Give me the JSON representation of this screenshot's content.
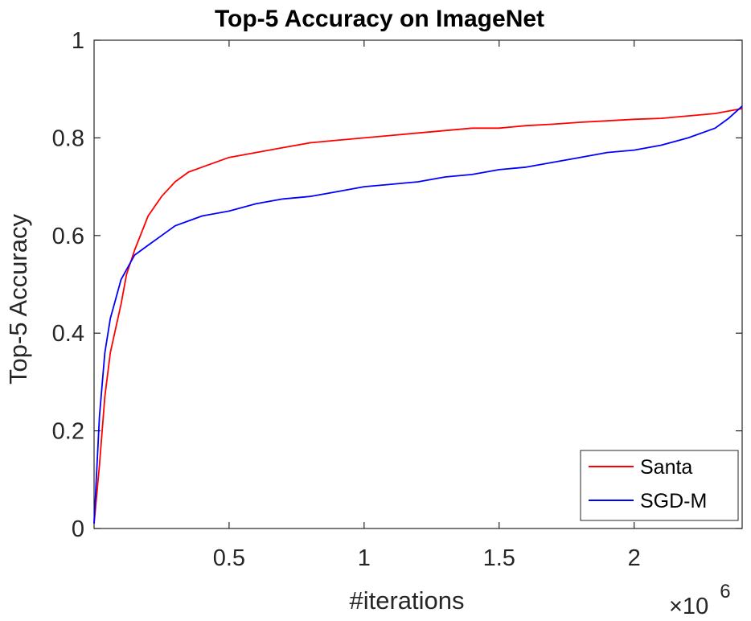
{
  "chart_data": {
    "type": "line",
    "title": "Top-5 Accuracy on ImageNet",
    "xlabel": "#iterations",
    "ylabel": "Top-5 Accuracy",
    "x_multiplier_prefix": "×10",
    "x_multiplier_exp": "6",
    "xlim": [
      0,
      2.4
    ],
    "ylim": [
      0,
      1
    ],
    "xticks": [
      0.5,
      1,
      1.5,
      2
    ],
    "xtick_labels": [
      "0.5",
      "1",
      "1.5",
      "2"
    ],
    "yticks": [
      0,
      0.2,
      0.4,
      0.6,
      0.8,
      1
    ],
    "ytick_labels": [
      "0",
      "0.2",
      "0.4",
      "0.6",
      "0.8",
      "1"
    ],
    "grid": false,
    "legend_position": "bottom-right",
    "x": [
      0,
      0.02,
      0.04,
      0.06,
      0.08,
      0.1,
      0.12,
      0.15,
      0.2,
      0.25,
      0.3,
      0.35,
      0.4,
      0.5,
      0.6,
      0.7,
      0.8,
      0.9,
      1.0,
      1.1,
      1.2,
      1.3,
      1.4,
      1.5,
      1.6,
      1.7,
      1.8,
      1.9,
      2.0,
      2.1,
      2.2,
      2.3,
      2.35,
      2.4
    ],
    "series": [
      {
        "name": "Santa",
        "color": "#ff0000",
        "values": [
          0.01,
          0.13,
          0.27,
          0.36,
          0.41,
          0.46,
          0.52,
          0.57,
          0.64,
          0.68,
          0.71,
          0.73,
          0.74,
          0.76,
          0.77,
          0.78,
          0.79,
          0.795,
          0.8,
          0.805,
          0.81,
          0.815,
          0.82,
          0.82,
          0.825,
          0.828,
          0.832,
          0.835,
          0.838,
          0.84,
          0.845,
          0.85,
          0.855,
          0.86
        ]
      },
      {
        "name": "SGD-M",
        "color": "#0000ff",
        "values": [
          0.01,
          0.23,
          0.36,
          0.43,
          0.47,
          0.51,
          0.53,
          0.56,
          0.58,
          0.6,
          0.62,
          0.63,
          0.64,
          0.65,
          0.665,
          0.675,
          0.68,
          0.69,
          0.7,
          0.705,
          0.71,
          0.72,
          0.725,
          0.735,
          0.74,
          0.75,
          0.76,
          0.77,
          0.775,
          0.785,
          0.8,
          0.82,
          0.84,
          0.865
        ]
      }
    ]
  }
}
